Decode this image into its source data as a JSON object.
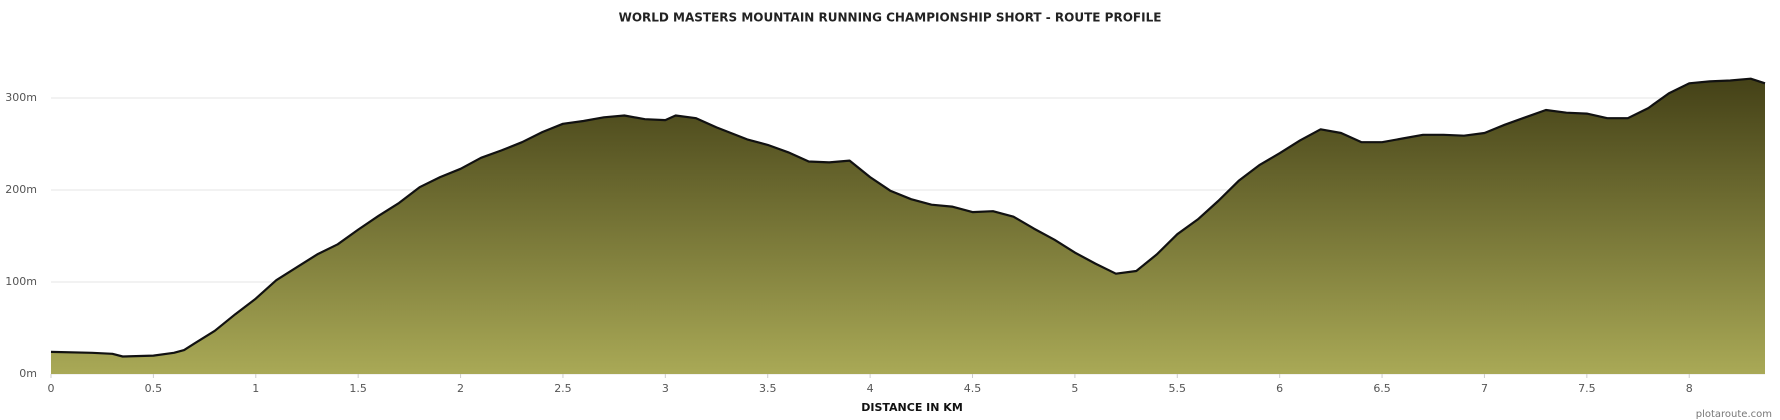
{
  "chart_data": {
    "type": "area",
    "title": "WORLD MASTERS MOUNTAIN RUNNING CHAMPIONSHIP SHORT - ROUTE PROFILE",
    "x_label": "DISTANCE IN KM",
    "credit": "plotaroute.com",
    "x": [
      0,
      0.2,
      0.3,
      0.35,
      0.5,
      0.6,
      0.65,
      0.7,
      0.8,
      0.9,
      1.0,
      1.1,
      1.2,
      1.3,
      1.4,
      1.5,
      1.6,
      1.7,
      1.8,
      1.9,
      2.0,
      2.1,
      2.2,
      2.3,
      2.4,
      2.5,
      2.6,
      2.7,
      2.8,
      2.9,
      3.0,
      3.05,
      3.15,
      3.25,
      3.4,
      3.5,
      3.6,
      3.7,
      3.8,
      3.9,
      4.0,
      4.1,
      4.2,
      4.3,
      4.4,
      4.5,
      4.6,
      4.7,
      4.8,
      4.9,
      5.0,
      5.1,
      5.2,
      5.3,
      5.4,
      5.5,
      5.6,
      5.7,
      5.8,
      5.9,
      6.0,
      6.1,
      6.2,
      6.3,
      6.4,
      6.5,
      6.6,
      6.7,
      6.8,
      6.9,
      7.0,
      7.1,
      7.2,
      7.3,
      7.4,
      7.5,
      7.6,
      7.7,
      7.8,
      7.9,
      8.0,
      8.1,
      8.2,
      8.3,
      8.37
    ],
    "values": [
      24,
      23,
      22,
      19,
      20,
      23,
      26,
      33,
      47,
      65,
      82,
      102,
      116,
      130,
      141,
      157,
      172,
      186,
      203,
      214,
      223,
      235,
      243,
      252,
      263,
      272,
      275,
      279,
      281,
      277,
      276,
      281,
      278,
      268,
      255,
      249,
      241,
      231,
      230,
      232,
      214,
      199,
      190,
      184,
      182,
      176,
      177,
      171,
      158,
      146,
      132,
      120,
      109,
      112,
      130,
      152,
      168,
      188,
      210,
      227,
      240,
      254,
      266,
      262,
      252,
      252,
      256,
      260,
      260,
      259,
      262,
      271,
      279,
      287,
      284,
      283,
      278,
      278,
      289,
      305,
      316,
      318,
      319,
      321,
      316
    ],
    "color_top": "#444117",
    "color_bottom": "#a9a956",
    "line_color": "#111111",
    "xlim": [
      0,
      8.37
    ],
    "ylim": [
      0,
      350
    ],
    "xticks": [
      0,
      0.5,
      1,
      1.5,
      2,
      2.5,
      3,
      3.5,
      4,
      4.5,
      5,
      5.5,
      6,
      6.5,
      7,
      7.5,
      8
    ],
    "yticks": [
      {
        "value": 0,
        "label": "0m"
      },
      {
        "value": 100,
        "label": "100m"
      },
      {
        "value": 200,
        "label": "200m"
      },
      {
        "value": 300,
        "label": "300m"
      }
    ],
    "grid": true
  }
}
